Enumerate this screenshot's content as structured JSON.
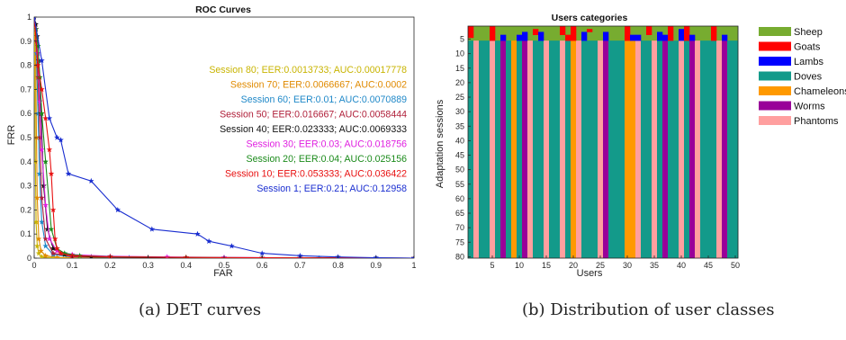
{
  "captions": {
    "a": "(a) DET curves",
    "b": "(b) Distribution of user classes"
  },
  "chart_data": [
    {
      "type": "line",
      "title": "ROC Curves",
      "xlabel": "FAR",
      "ylabel": "FRR",
      "xlim": [
        0,
        1
      ],
      "ylim": [
        0,
        1
      ],
      "xticks": [
        "0",
        "0.1",
        "0.2",
        "0.3",
        "0.4",
        "0.5",
        "0.6",
        "0.7",
        "0.8",
        "0.9",
        "1"
      ],
      "yticks": [
        "0",
        "0.1",
        "0.2",
        "0.3",
        "0.4",
        "0.5",
        "0.6",
        "0.7",
        "0.8",
        "0.9",
        "1"
      ],
      "grid": false,
      "legend_position": "right",
      "series": [
        {
          "name": "Session 80;  EER:0.0013733;  AUC:0.00017778",
          "color": "#c8b400",
          "x": [
            0,
            0.001,
            0.002,
            0.003,
            0.005,
            0.008,
            0.012,
            0.02,
            0.05,
            0.1,
            0.2,
            0.4,
            0.6,
            0.8,
            1.0
          ],
          "y": [
            1.0,
            0.95,
            0.7,
            0.4,
            0.15,
            0.05,
            0.02,
            0.005,
            0.001,
            0,
            0,
            0,
            0,
            0,
            0
          ]
        },
        {
          "name": "Session 70;  EER:0.0066667;  AUC:0.0002",
          "color": "#e08a00",
          "x": [
            0,
            0.002,
            0.004,
            0.006,
            0.008,
            0.012,
            0.018,
            0.03,
            0.06,
            0.15,
            0.35,
            0.6,
            1.0
          ],
          "y": [
            1.0,
            0.96,
            0.8,
            0.5,
            0.25,
            0.08,
            0.03,
            0.01,
            0.003,
            0.001,
            0,
            0,
            0
          ]
        },
        {
          "name": "Session 60;  EER:0.01;  AUC:0.0070889",
          "color": "#1f88c8",
          "x": [
            0,
            0.003,
            0.006,
            0.01,
            0.014,
            0.02,
            0.03,
            0.05,
            0.1,
            0.25,
            0.5,
            0.75,
            1.0
          ],
          "y": [
            1.0,
            0.97,
            0.85,
            0.6,
            0.35,
            0.15,
            0.05,
            0.015,
            0.005,
            0.002,
            0.001,
            0,
            0
          ]
        },
        {
          "name": "Session 50;  EER:0.016667;  AUC:0.0058444",
          "color": "#b0203a",
          "x": [
            0,
            0.003,
            0.006,
            0.01,
            0.015,
            0.02,
            0.03,
            0.05,
            0.1,
            0.3,
            0.6,
            1.0
          ],
          "y": [
            1.0,
            0.97,
            0.9,
            0.75,
            0.5,
            0.25,
            0.08,
            0.02,
            0.006,
            0.002,
            0.001,
            0
          ]
        },
        {
          "name": "Session 40;  EER:0.023333;  AUC:0.0069333",
          "color": "#111111",
          "x": [
            0,
            0.004,
            0.008,
            0.012,
            0.018,
            0.025,
            0.035,
            0.05,
            0.08,
            0.15,
            0.3,
            0.6,
            1.0
          ],
          "y": [
            1.0,
            0.97,
            0.92,
            0.82,
            0.6,
            0.3,
            0.12,
            0.04,
            0.015,
            0.005,
            0.002,
            0.001,
            0
          ]
        },
        {
          "name": "Session 30;  EER:0.03;  AUC:0.018756",
          "color": "#e020e0",
          "x": [
            0,
            0.005,
            0.01,
            0.015,
            0.02,
            0.03,
            0.04,
            0.06,
            0.1,
            0.2,
            0.35,
            0.5,
            0.7,
            1.0
          ],
          "y": [
            1.0,
            0.95,
            0.85,
            0.65,
            0.45,
            0.22,
            0.08,
            0.03,
            0.015,
            0.008,
            0.005,
            0.003,
            0.001,
            0
          ]
        },
        {
          "name": "Session 20;  EER:0.04;  AUC:0.025156",
          "color": "#1a8a1a",
          "x": [
            0,
            0.005,
            0.01,
            0.015,
            0.02,
            0.03,
            0.045,
            0.06,
            0.08,
            0.12,
            0.2,
            0.4,
            0.7,
            1.0
          ],
          "y": [
            1.0,
            0.95,
            0.88,
            0.75,
            0.6,
            0.4,
            0.12,
            0.04,
            0.02,
            0.01,
            0.006,
            0.003,
            0.001,
            0
          ]
        },
        {
          "name": "Session 10;  EER:0.053333;  AUC:0.036422",
          "color": "#e81010",
          "x": [
            0,
            0.01,
            0.02,
            0.03,
            0.04,
            0.045,
            0.05,
            0.055,
            0.06,
            0.07,
            0.1,
            0.2,
            0.4,
            0.7,
            1.0
          ],
          "y": [
            1.0,
            0.8,
            0.7,
            0.58,
            0.45,
            0.35,
            0.2,
            0.08,
            0.04,
            0.02,
            0.01,
            0.005,
            0.003,
            0.001,
            0
          ]
        },
        {
          "name": "Session 1;  EER:0.21;  AUC:0.12958",
          "color": "#1a2ed0",
          "x": [
            0,
            0.02,
            0.04,
            0.06,
            0.07,
            0.09,
            0.15,
            0.22,
            0.31,
            0.43,
            0.46,
            0.52,
            0.6,
            0.7,
            0.8,
            0.9,
            1.0
          ],
          "y": [
            1.0,
            0.82,
            0.58,
            0.5,
            0.49,
            0.35,
            0.32,
            0.2,
            0.12,
            0.1,
            0.07,
            0.05,
            0.02,
            0.01,
            0.005,
            0.002,
            0
          ]
        }
      ]
    },
    {
      "type": "heatmap",
      "title": "Users categories",
      "xlabel": "Users",
      "ylabel": "Adaptation sessions",
      "xlim": [
        0.5,
        50.5
      ],
      "ylim": [
        0.5,
        80.5
      ],
      "xticks": [
        5,
        10,
        15,
        20,
        25,
        30,
        35,
        40,
        45,
        50
      ],
      "yticks": [
        5,
        10,
        15,
        20,
        25,
        30,
        35,
        40,
        45,
        50,
        55,
        60,
        65,
        70,
        75,
        80
      ],
      "legend_position": "right",
      "categories": [
        "Sheep",
        "Goats",
        "Lambs",
        "Doves",
        "Chameleons",
        "Worms",
        "Phantoms"
      ],
      "colors": {
        "Sheep": "#77ac30",
        "Goats": "#ff0000",
        "Lambs": "#0000ff",
        "Doves": "#139a8a",
        "Chameleons": "#ff9900",
        "Worms": "#990099",
        "Phantoms": "#ff9f9f"
      },
      "users": [
        1,
        2,
        3,
        4,
        5,
        6,
        7,
        8,
        9,
        10,
        11,
        12,
        13,
        14,
        15,
        16,
        17,
        18,
        19,
        20,
        21,
        22,
        23,
        24,
        25,
        26,
        27,
        28,
        29,
        30,
        31,
        32,
        33,
        34,
        35,
        36,
        37,
        38,
        39,
        40,
        41,
        42,
        43,
        44,
        45,
        46,
        47,
        48,
        49,
        50
      ],
      "base_class": [
        "Doves",
        "Phantoms",
        "Doves",
        "Doves",
        "Phantoms",
        "Doves",
        "Worms",
        "Doves",
        "Chameleons",
        "Doves",
        "Worms",
        "Phantoms",
        "Doves",
        "Doves",
        "Phantoms",
        "Doves",
        "Doves",
        "Phantoms",
        "Doves",
        "Chameleons",
        "Phantoms",
        "Doves",
        "Doves",
        "Doves",
        "Phantoms",
        "Worms",
        "Doves",
        "Doves",
        "Doves",
        "Chameleons",
        "Chameleons",
        "Phantoms",
        "Doves",
        "Doves",
        "Phantoms",
        "Doves",
        "Worms",
        "Doves",
        "Doves",
        "Phantoms",
        "Doves",
        "Worms",
        "Phantoms",
        "Doves",
        "Doves",
        "Doves",
        "Phantoms",
        "Worms",
        "Doves",
        "Doves"
      ],
      "top_rows": {
        "sessions": [
          1,
          2,
          3,
          4,
          5
        ],
        "cells": [
          {
            "user": 1,
            "sessions": [
              1,
              2,
              3,
              4
            ],
            "class": "Goats"
          },
          {
            "user": 5,
            "sessions": [
              1,
              2,
              3,
              4,
              5
            ],
            "class": "Goats"
          },
          {
            "user": 7,
            "sessions": [
              4,
              5
            ],
            "class": "Lambs"
          },
          {
            "user": 10,
            "sessions": [
              4,
              5
            ],
            "class": "Lambs"
          },
          {
            "user": 11,
            "sessions": [
              3,
              4,
              5
            ],
            "class": "Lambs"
          },
          {
            "user": 13,
            "sessions": [
              2,
              3
            ],
            "class": "Goats"
          },
          {
            "user": 14,
            "sessions": [
              3,
              4,
              5
            ],
            "class": "Lambs"
          },
          {
            "user": 18,
            "sessions": [
              1,
              2,
              3
            ],
            "class": "Goats"
          },
          {
            "user": 19,
            "sessions": [
              4,
              5
            ],
            "class": "Goats"
          },
          {
            "user": 20,
            "sessions": [
              1,
              2,
              3,
              4,
              5
            ],
            "class": "Goats"
          },
          {
            "user": 22,
            "sessions": [
              3,
              4,
              5
            ],
            "class": "Lambs"
          },
          {
            "user": 23,
            "sessions": [
              2
            ],
            "class": "Goats"
          },
          {
            "user": 26,
            "sessions": [
              3,
              4,
              5
            ],
            "class": "Lambs"
          },
          {
            "user": 30,
            "sessions": [
              1,
              2,
              3,
              4,
              5
            ],
            "class": "Goats"
          },
          {
            "user": 31,
            "sessions": [
              4,
              5
            ],
            "class": "Lambs"
          },
          {
            "user": 32,
            "sessions": [
              4,
              5
            ],
            "class": "Lambs"
          },
          {
            "user": 34,
            "sessions": [
              1,
              2,
              3
            ],
            "class": "Goats"
          },
          {
            "user": 36,
            "sessions": [
              3,
              4,
              5
            ],
            "class": "Lambs"
          },
          {
            "user": 37,
            "sessions": [
              4,
              5
            ],
            "class": "Lambs"
          },
          {
            "user": 38,
            "sessions": [
              1,
              2,
              3,
              4,
              5
            ],
            "class": "Goats"
          },
          {
            "user": 40,
            "sessions": [
              2,
              3,
              4,
              5
            ],
            "class": "Lambs"
          },
          {
            "user": 41,
            "sessions": [
              1,
              2,
              3,
              4,
              5
            ],
            "class": "Goats"
          },
          {
            "user": 42,
            "sessions": [
              4,
              5
            ],
            "class": "Lambs"
          },
          {
            "user": 46,
            "sessions": [
              1,
              2,
              3,
              4,
              5
            ],
            "class": "Goats"
          },
          {
            "user": 48,
            "sessions": [
              4,
              5
            ],
            "class": "Lambs"
          }
        ],
        "default_class": "Sheep"
      }
    }
  ]
}
